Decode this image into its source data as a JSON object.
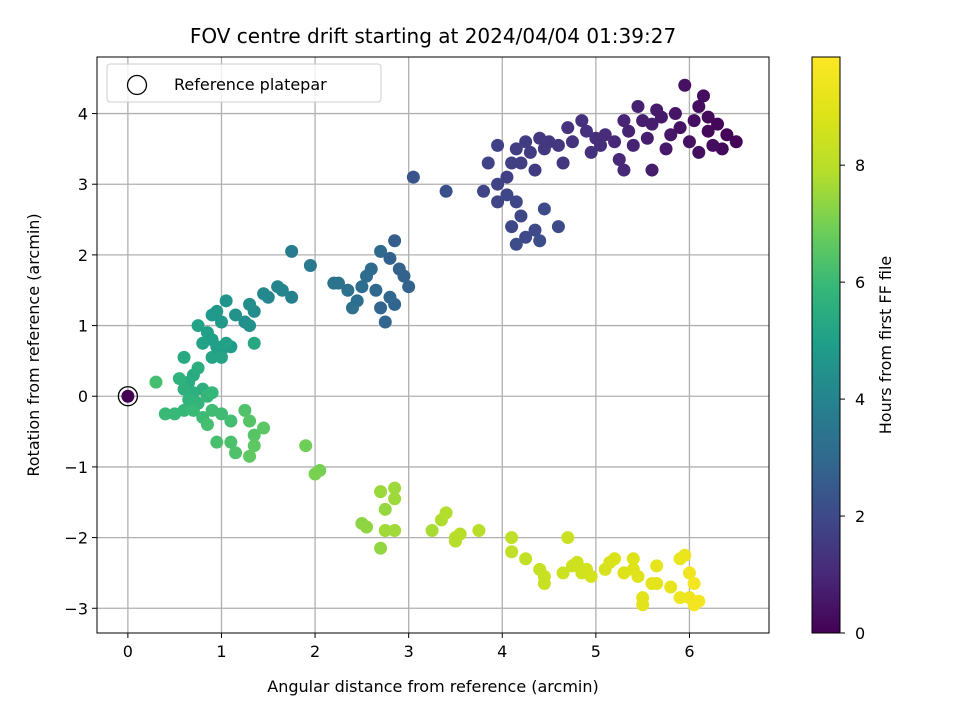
{
  "chart_data": {
    "type": "scatter",
    "title": "FOV centre drift starting at 2024/04/04 01:39:27",
    "xlabel": "Angular distance from reference (arcmin)",
    "ylabel": "Rotation from reference (arcmin)",
    "xlim": [
      -0.33,
      6.85
    ],
    "ylim": [
      -3.35,
      4.8
    ],
    "x_ticks": [
      0,
      1,
      2,
      3,
      4,
      5,
      6
    ],
    "y_ticks": [
      -3,
      -2,
      -1,
      0,
      1,
      2,
      3,
      4
    ],
    "grid": true,
    "legend": {
      "placement": "top-left",
      "entries": [
        "Reference platepar"
      ]
    },
    "reference_point": {
      "x": 0,
      "y": 0,
      "c": 0
    },
    "colorbar": {
      "label": "Hours from first FF file",
      "range": [
        0,
        9.85
      ],
      "ticks": [
        0,
        2,
        4,
        6,
        8
      ],
      "colormap": "viridis"
    },
    "series": [
      {
        "points": [
          [
            6.5,
            3.6,
            0.1
          ],
          [
            6.4,
            3.7,
            0.1
          ],
          [
            6.3,
            3.85,
            0.15
          ],
          [
            6.2,
            3.75,
            0.2
          ],
          [
            6.35,
            3.5,
            0.2
          ],
          [
            6.1,
            4.1,
            0.3
          ],
          [
            6.15,
            4.25,
            0.3
          ],
          [
            5.95,
            4.4,
            0.4
          ],
          [
            6.05,
            3.9,
            0.35
          ],
          [
            6.0,
            3.6,
            0.4
          ],
          [
            5.9,
            3.8,
            0.45
          ],
          [
            6.2,
            3.95,
            0.25
          ],
          [
            6.25,
            3.55,
            0.3
          ],
          [
            6.1,
            3.45,
            0.35
          ],
          [
            5.85,
            4.0,
            0.5
          ],
          [
            5.8,
            3.7,
            0.55
          ],
          [
            5.7,
            3.95,
            0.6
          ],
          [
            5.75,
            3.5,
            0.6
          ],
          [
            5.6,
            3.85,
            0.7
          ],
          [
            5.65,
            4.05,
            0.65
          ],
          [
            5.5,
            3.9,
            0.75
          ],
          [
            5.45,
            4.1,
            0.8
          ],
          [
            5.35,
            3.75,
            0.85
          ],
          [
            5.55,
            3.65,
            0.7
          ],
          [
            5.6,
            3.2,
            0.7
          ],
          [
            5.4,
            3.55,
            0.85
          ],
          [
            5.3,
            3.9,
            0.9
          ],
          [
            5.2,
            3.6,
            1.0
          ],
          [
            5.25,
            3.35,
            1.0
          ],
          [
            5.3,
            3.2,
            1.0
          ],
          [
            5.1,
            3.7,
            1.1
          ],
          [
            5.0,
            3.65,
            1.15
          ],
          [
            4.95,
            3.45,
            1.2
          ],
          [
            5.05,
            3.55,
            1.15
          ],
          [
            4.9,
            3.75,
            1.25
          ],
          [
            4.85,
            3.9,
            1.25
          ],
          [
            4.75,
            3.6,
            1.3
          ],
          [
            4.7,
            3.8,
            1.3
          ],
          [
            4.6,
            3.55,
            1.4
          ],
          [
            4.65,
            3.3,
            1.4
          ],
          [
            4.5,
            3.6,
            1.45
          ],
          [
            4.45,
            3.5,
            1.5
          ],
          [
            4.4,
            3.65,
            1.5
          ],
          [
            4.35,
            3.2,
            1.55
          ],
          [
            4.3,
            3.45,
            1.6
          ],
          [
            4.25,
            3.6,
            1.6
          ],
          [
            4.2,
            3.3,
            1.65
          ],
          [
            4.15,
            3.5,
            1.65
          ],
          [
            4.05,
            3.1,
            1.7
          ],
          [
            4.1,
            3.3,
            1.7
          ],
          [
            3.95,
            3.55,
            1.75
          ],
          [
            3.85,
            3.3,
            1.8
          ],
          [
            3.95,
            3.0,
            1.8
          ],
          [
            3.8,
            2.9,
            1.85
          ],
          [
            3.95,
            2.75,
            1.85
          ],
          [
            4.05,
            2.85,
            1.9
          ],
          [
            4.15,
            2.75,
            1.9
          ],
          [
            4.2,
            2.55,
            1.95
          ],
          [
            4.1,
            2.4,
            1.95
          ],
          [
            4.25,
            2.25,
            2.0
          ],
          [
            4.35,
            2.35,
            2.0
          ],
          [
            4.45,
            2.65,
            2.05
          ],
          [
            4.6,
            2.4,
            2.05
          ],
          [
            4.4,
            2.2,
            2.1
          ],
          [
            4.15,
            2.15,
            2.1
          ],
          [
            3.4,
            2.9,
            2.2
          ],
          [
            3.05,
            3.1,
            2.3
          ],
          [
            2.85,
            2.2,
            2.6
          ],
          [
            2.8,
            1.95,
            2.7
          ],
          [
            2.9,
            1.8,
            2.75
          ],
          [
            2.95,
            1.7,
            2.8
          ],
          [
            3.0,
            1.55,
            2.8
          ],
          [
            2.85,
            1.3,
            2.85
          ],
          [
            2.75,
            1.05,
            2.9
          ],
          [
            2.7,
            1.25,
            2.9
          ],
          [
            2.8,
            1.4,
            2.95
          ],
          [
            2.65,
            1.5,
            3.0
          ],
          [
            2.7,
            2.05,
            3.0
          ],
          [
            2.6,
            1.8,
            3.05
          ],
          [
            2.55,
            1.7,
            3.1
          ],
          [
            2.5,
            1.55,
            3.15
          ],
          [
            2.45,
            1.35,
            3.2
          ],
          [
            2.4,
            1.25,
            3.25
          ],
          [
            2.35,
            1.5,
            3.3
          ],
          [
            2.2,
            1.6,
            3.4
          ],
          [
            2.25,
            1.6,
            3.4
          ],
          [
            1.95,
            1.85,
            3.6
          ],
          [
            1.75,
            2.05,
            3.7
          ],
          [
            1.75,
            1.4,
            3.9
          ],
          [
            1.65,
            1.5,
            4.0
          ],
          [
            1.6,
            1.55,
            4.05
          ],
          [
            1.5,
            1.4,
            4.1
          ],
          [
            1.45,
            1.45,
            4.2
          ],
          [
            1.35,
            1.2,
            4.3
          ],
          [
            1.3,
            1.3,
            4.35
          ],
          [
            1.25,
            1.05,
            4.4
          ],
          [
            1.3,
            1.0,
            4.45
          ],
          [
            1.15,
            1.15,
            4.5
          ],
          [
            1.05,
            1.35,
            4.6
          ],
          [
            0.95,
            1.2,
            4.7
          ],
          [
            1.0,
            1.05,
            4.75
          ],
          [
            0.9,
            1.15,
            4.8
          ],
          [
            1.1,
            0.7,
            4.85
          ],
          [
            1.0,
            0.65,
            4.9
          ],
          [
            0.9,
            0.8,
            4.95
          ],
          [
            0.85,
            0.9,
            5.0
          ],
          [
            0.95,
            0.7,
            5.0
          ],
          [
            1.05,
            0.75,
            5.05
          ],
          [
            0.8,
            0.75,
            5.1
          ],
          [
            0.75,
            1.0,
            5.1
          ],
          [
            0.9,
            0.55,
            5.2
          ],
          [
            1.0,
            0.55,
            5.2
          ],
          [
            1.35,
            0.75,
            5.3
          ],
          [
            0.6,
            0.55,
            5.35
          ],
          [
            0.7,
            0.3,
            5.4
          ],
          [
            0.65,
            0.2,
            5.45
          ],
          [
            0.75,
            0.4,
            5.5
          ],
          [
            0.8,
            0.1,
            5.55
          ],
          [
            0.7,
            0.05,
            5.6
          ],
          [
            0.6,
            0.1,
            5.65
          ],
          [
            0.55,
            0.25,
            5.7
          ],
          [
            0.65,
            -0.05,
            5.75
          ],
          [
            0.75,
            -0.1,
            5.8
          ],
          [
            0.85,
            0.0,
            5.85
          ],
          [
            0.9,
            0.05,
            5.9
          ],
          [
            0.6,
            -0.2,
            5.9
          ],
          [
            0.5,
            -0.25,
            5.95
          ],
          [
            0.4,
            -0.25,
            6.0
          ],
          [
            0.7,
            -0.2,
            6.0
          ],
          [
            0.8,
            -0.3,
            6.05
          ],
          [
            0.9,
            -0.2,
            6.1
          ],
          [
            1.0,
            -0.25,
            6.1
          ],
          [
            1.1,
            -0.35,
            6.15
          ],
          [
            0.85,
            -0.4,
            6.2
          ],
          [
            0.3,
            0.2,
            6.2
          ],
          [
            0.95,
            -0.65,
            6.25
          ],
          [
            1.1,
            -0.65,
            6.3
          ],
          [
            1.15,
            -0.8,
            6.35
          ],
          [
            1.25,
            -0.2,
            6.4
          ],
          [
            1.3,
            -0.35,
            6.45
          ],
          [
            1.35,
            -0.55,
            6.5
          ],
          [
            1.45,
            -0.45,
            6.55
          ],
          [
            1.35,
            -0.7,
            6.6
          ],
          [
            1.3,
            -0.85,
            6.65
          ],
          [
            1.9,
            -0.7,
            6.9
          ],
          [
            2.05,
            -1.05,
            7.0
          ],
          [
            2.0,
            -1.1,
            7.05
          ],
          [
            2.5,
            -1.8,
            7.3
          ],
          [
            2.55,
            -1.85,
            7.35
          ],
          [
            2.7,
            -2.15,
            7.4
          ],
          [
            2.75,
            -1.6,
            7.45
          ],
          [
            2.7,
            -1.35,
            7.5
          ],
          [
            2.85,
            -1.3,
            7.55
          ],
          [
            2.85,
            -1.45,
            7.55
          ],
          [
            2.75,
            -1.9,
            7.6
          ],
          [
            2.85,
            -1.9,
            7.6
          ],
          [
            3.25,
            -1.9,
            7.7
          ],
          [
            3.35,
            -1.75,
            7.8
          ],
          [
            3.4,
            -1.65,
            7.85
          ],
          [
            3.5,
            -2.05,
            7.9
          ],
          [
            3.55,
            -1.95,
            7.95
          ],
          [
            3.5,
            -2.0,
            7.95
          ],
          [
            3.75,
            -1.9,
            8.0
          ],
          [
            4.1,
            -2.0,
            8.1
          ],
          [
            4.1,
            -2.2,
            8.15
          ],
          [
            4.25,
            -2.3,
            8.2
          ],
          [
            4.4,
            -2.45,
            8.3
          ],
          [
            4.45,
            -2.55,
            8.35
          ],
          [
            4.45,
            -2.65,
            8.35
          ],
          [
            4.7,
            -2.0,
            8.4
          ],
          [
            4.65,
            -2.5,
            8.45
          ],
          [
            4.75,
            -2.4,
            8.5
          ],
          [
            4.8,
            -2.35,
            8.5
          ],
          [
            4.85,
            -2.5,
            8.55
          ],
          [
            4.9,
            -2.45,
            8.6
          ],
          [
            4.95,
            -2.55,
            8.65
          ],
          [
            5.1,
            -2.45,
            8.7
          ],
          [
            5.15,
            -2.35,
            8.75
          ],
          [
            5.2,
            -2.3,
            8.8
          ],
          [
            5.3,
            -2.5,
            8.85
          ],
          [
            5.4,
            -2.45,
            8.9
          ],
          [
            5.4,
            -2.3,
            8.9
          ],
          [
            5.45,
            -2.55,
            8.95
          ],
          [
            5.5,
            -2.85,
            9.0
          ],
          [
            5.5,
            -2.95,
            9.0
          ],
          [
            5.6,
            -2.65,
            9.1
          ],
          [
            5.65,
            -2.65,
            9.1
          ],
          [
            5.65,
            -2.4,
            9.15
          ],
          [
            5.8,
            -2.7,
            9.2
          ],
          [
            5.9,
            -2.3,
            9.25
          ],
          [
            5.95,
            -2.25,
            9.3
          ],
          [
            5.9,
            -2.85,
            9.35
          ],
          [
            6.0,
            -2.85,
            9.4
          ],
          [
            6.0,
            -2.5,
            9.45
          ],
          [
            6.05,
            -2.95,
            9.5
          ],
          [
            6.1,
            -2.9,
            9.55
          ],
          [
            6.05,
            -2.65,
            9.6
          ]
        ]
      }
    ]
  }
}
